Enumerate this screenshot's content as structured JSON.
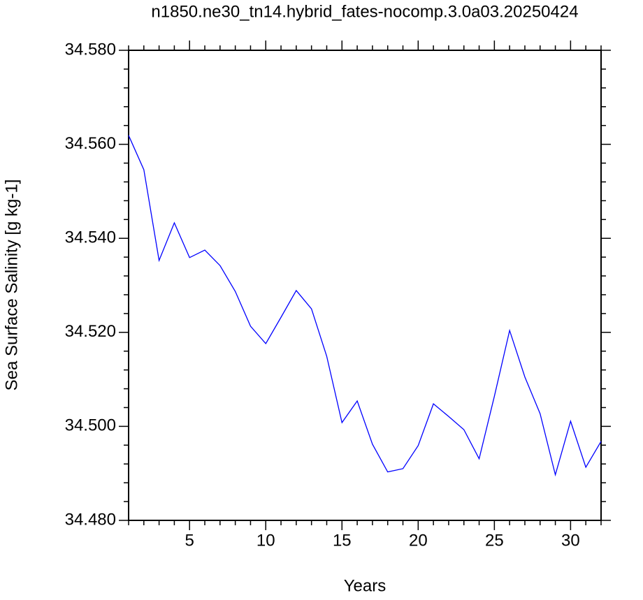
{
  "chart_data": {
    "type": "line",
    "title": "n1850.ne30_tn14.hybrid_fates-nocomp.3.0a03.20250424",
    "x_label": "Years",
    "y_label": "Sea Surface Salinity [g kg-1]",
    "x": [
      1,
      2,
      3,
      4,
      5,
      6,
      7,
      8,
      9,
      10,
      11,
      12,
      13,
      14,
      15,
      16,
      17,
      18,
      19,
      20,
      21,
      22,
      23,
      24,
      25,
      26,
      27,
      28,
      29,
      30,
      31,
      32
    ],
    "series": [
      {
        "name": "Sea Surface Salinity",
        "color": "#0000ff",
        "values": [
          34.5619,
          34.5546,
          34.5353,
          34.5433,
          34.5359,
          34.5375,
          34.5342,
          34.5287,
          34.5213,
          34.5176,
          34.5232,
          34.5289,
          34.525,
          34.5149,
          34.5008,
          34.5054,
          34.4962,
          34.4903,
          34.491,
          34.4959,
          34.5048,
          34.5021,
          34.4993,
          34.4931,
          34.5064,
          34.5204,
          34.5105,
          34.5027,
          34.4897,
          34.5011,
          34.4913,
          34.4968
        ]
      }
    ],
    "xlim": [
      1,
      32
    ],
    "ylim": [
      34.48,
      34.58
    ],
    "xticks": [
      5,
      10,
      15,
      20,
      25,
      30
    ],
    "yticks": [
      {
        "value": 34.48,
        "label": "34.480"
      },
      {
        "value": 34.5,
        "label": "34.500"
      },
      {
        "value": 34.52,
        "label": "34.520"
      },
      {
        "value": 34.54,
        "label": "34.540"
      },
      {
        "value": 34.56,
        "label": "34.560"
      },
      {
        "value": 34.58,
        "label": "34.580"
      }
    ],
    "xminorticks": [
      1,
      2,
      3,
      4,
      6,
      7,
      8,
      9,
      11,
      12,
      13,
      14,
      16,
      17,
      18,
      19,
      21,
      22,
      23,
      24,
      26,
      27,
      28,
      29,
      31,
      32
    ],
    "yminorticks": [
      34.484,
      34.488,
      34.492,
      34.496,
      34.504,
      34.508,
      34.512,
      34.516,
      34.524,
      34.528,
      34.532,
      34.536,
      34.544,
      34.548,
      34.552,
      34.556,
      34.564,
      34.568,
      34.572,
      34.576
    ],
    "grid": false
  }
}
